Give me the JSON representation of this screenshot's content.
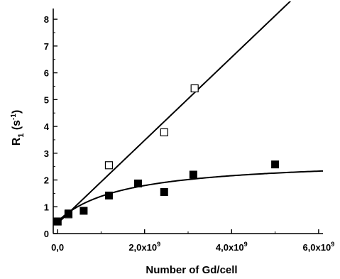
{
  "chart_data": {
    "type": "scatter",
    "xlabel": "Number of Gd/cell",
    "ylabel_main": "R",
    "ylabel_sub": "1",
    "ylabel_unit_open": " (s",
    "ylabel_unit_sup": "-1",
    "ylabel_unit_close": ")",
    "xlim": [
      -100000000.0,
      6100000000.0
    ],
    "ylim": [
      0,
      8.4
    ],
    "x_ticks": [
      {
        "value": 0,
        "mantissa": "0,0",
        "exp": ""
      },
      {
        "value": 2000000000.0,
        "mantissa": "2,0x10",
        "exp": "9"
      },
      {
        "value": 4000000000.0,
        "mantissa": "4,0x10",
        "exp": "9"
      },
      {
        "value": 6000000000.0,
        "mantissa": "6,0x10",
        "exp": "9"
      }
    ],
    "y_ticks": [
      0,
      1,
      2,
      3,
      4,
      5,
      6,
      7,
      8
    ],
    "series": [
      {
        "marker": "open-square",
        "points": [
          [
            0,
            0.45
          ],
          [
            250000000.0,
            0.72
          ],
          [
            1180000000.0,
            2.55
          ],
          [
            2450000000.0,
            3.78
          ],
          [
            3150000000.0,
            5.42
          ]
        ],
        "fit": {
          "kind": "linear",
          "intercept": 0.38,
          "slope": 1.55e-09
        }
      },
      {
        "marker": "filled-square",
        "points": [
          [
            0,
            0.45
          ],
          [
            250000000.0,
            0.75
          ],
          [
            600000000.0,
            0.85
          ],
          [
            1180000000.0,
            1.42
          ],
          [
            1850000000.0,
            1.87
          ],
          [
            2450000000.0,
            1.55
          ],
          [
            3120000000.0,
            2.2
          ],
          [
            5000000000.0,
            2.58
          ]
        ],
        "fit": {
          "kind": "saturation",
          "y0": 0.45,
          "a": 2.35,
          "k": 1500000000.0
        }
      }
    ]
  }
}
